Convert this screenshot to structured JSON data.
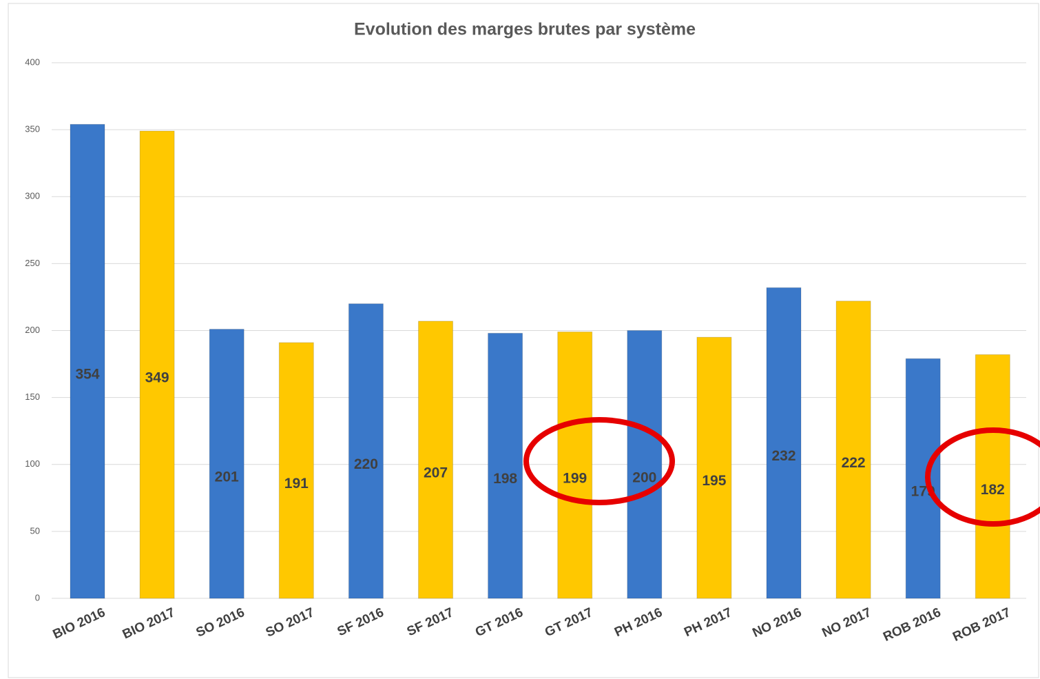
{
  "chart_data": {
    "type": "bar",
    "title": "Evolution des marges brutes par système",
    "categories": [
      "BIO 2016",
      "BIO 2017",
      "SO 2016",
      "SO 2017",
      "SF 2016",
      "SF 2017",
      "GT 2016",
      "GT 2017",
      "PH 2016",
      "PH 2017",
      "NO 2016",
      "NO 2017",
      "ROB 2016",
      "ROB 2017"
    ],
    "values": [
      354,
      349,
      201,
      191,
      220,
      207,
      198,
      199,
      200,
      195,
      232,
      222,
      179,
      182
    ],
    "colors": [
      "#3a78c9",
      "#ffc800",
      "#3a78c9",
      "#ffc800",
      "#3a78c9",
      "#ffc800",
      "#3a78c9",
      "#ffc800",
      "#3a78c9",
      "#ffc800",
      "#3a78c9",
      "#ffc800",
      "#3a78c9",
      "#ffc800"
    ],
    "ylim": [
      0,
      400
    ],
    "yticks": [
      0,
      50,
      100,
      150,
      200,
      250,
      300,
      350,
      400
    ],
    "grid": true
  }
}
